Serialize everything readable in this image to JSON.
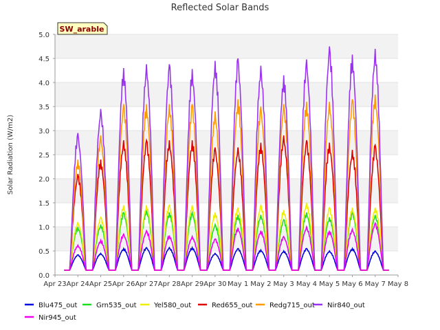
{
  "chart_data": {
    "type": "line",
    "title": "Reflected Solar Bands",
    "xlabel": "",
    "ylabel": "Solar Radiation (W/m2)",
    "badge": "SW_arable",
    "ylim": [
      0.0,
      5.0
    ],
    "yticks": [
      "0.0",
      "0.5",
      "1.0",
      "1.5",
      "2.0",
      "2.5",
      "3.0",
      "3.5",
      "4.0",
      "4.5",
      "5.0"
    ],
    "xticks": [
      "Apr 23",
      "Apr 24",
      "Apr 25",
      "Apr 26",
      "Apr 27",
      "Apr 28",
      "Apr 29",
      "Apr 30",
      "May 1",
      "May 2",
      "May 3",
      "May 4",
      "May 5",
      "May 6",
      "May 7",
      "May 8"
    ],
    "grid": "horizontal bands",
    "legend_position": "bottom",
    "x": [
      "Apr 24",
      "Apr 25",
      "Apr 26",
      "Apr 27",
      "Apr 28",
      "Apr 29",
      "Apr 30",
      "May 1",
      "May 2",
      "May 3",
      "May 4",
      "May 5",
      "May 6",
      "May 7"
    ],
    "night_baseline": 0.1,
    "series": [
      {
        "name": "Blu475_out",
        "color": "#0000dd",
        "values": [
          0.42,
          0.45,
          0.55,
          0.57,
          0.57,
          0.57,
          0.45,
          0.55,
          0.52,
          0.5,
          0.55,
          0.5,
          0.55,
          0.5
        ]
      },
      {
        "name": "Grn535_out",
        "color": "#22dd22",
        "values": [
          1.0,
          1.05,
          1.3,
          1.35,
          1.3,
          1.3,
          1.05,
          1.25,
          1.25,
          1.15,
          1.3,
          1.2,
          1.3,
          1.25
        ]
      },
      {
        "name": "Yel580_out",
        "color": "#eeee00",
        "values": [
          1.1,
          1.2,
          1.45,
          1.45,
          1.45,
          1.45,
          1.3,
          1.4,
          1.45,
          1.35,
          1.5,
          1.4,
          1.4,
          1.4
        ]
      },
      {
        "name": "Red655_out",
        "color": "#dd0000",
        "values": [
          2.1,
          2.4,
          2.8,
          2.8,
          2.8,
          2.8,
          2.65,
          2.65,
          2.75,
          2.9,
          2.8,
          2.75,
          2.6,
          2.7
        ]
      },
      {
        "name": "Redg715_out",
        "color": "#ff9900",
        "values": [
          2.4,
          2.9,
          3.55,
          3.55,
          3.55,
          3.55,
          3.4,
          3.65,
          3.5,
          3.55,
          3.6,
          3.6,
          3.65,
          3.75
        ]
      },
      {
        "name": "Nir840_out",
        "color": "#9933ee",
        "values": [
          2.95,
          3.45,
          4.3,
          4.38,
          4.38,
          4.28,
          4.45,
          4.5,
          4.35,
          4.15,
          4.48,
          4.75,
          4.58,
          4.7
        ]
      },
      {
        "name": "Nir945_out",
        "color": "#ee00ee",
        "values": [
          0.62,
          0.72,
          0.85,
          0.92,
          0.82,
          0.8,
          0.75,
          0.98,
          0.92,
          0.8,
          1.0,
          0.92,
          0.95,
          1.08
        ]
      }
    ]
  }
}
